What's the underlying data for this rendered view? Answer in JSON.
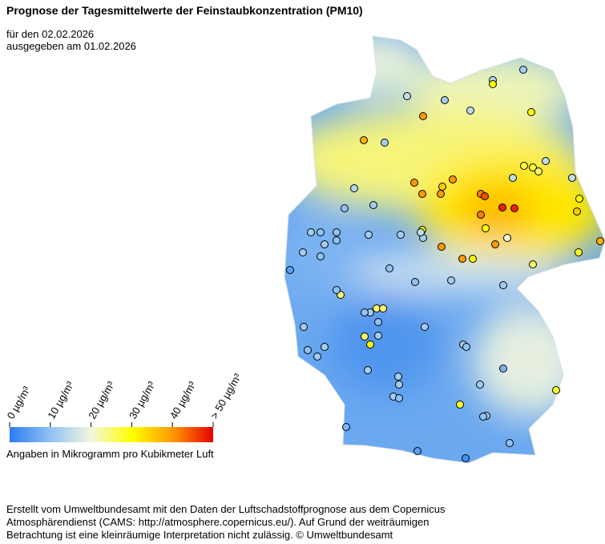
{
  "header": {
    "title": "Prognose der Tagesmittelwerte der Feinstaubkonzentration (PM10)",
    "date_line": "für den 02.02.2026",
    "issued_line": "ausgegeben am 01.02.2026"
  },
  "legend": {
    "ticks": [
      {
        "value": 0,
        "label": "0 µg/m³"
      },
      {
        "value": 10,
        "label": "10 µg/m³"
      },
      {
        "value": 20,
        "label": "20 µg/m³"
      },
      {
        "value": 30,
        "label": "30 µg/m³"
      },
      {
        "value": 40,
        "label": "40 µg/m³"
      },
      {
        "value": 50,
        "label": "> 50 µg/m³"
      }
    ],
    "colorscale": [
      {
        "value": 0,
        "color": "#2c7bf2"
      },
      {
        "value": 10,
        "color": "#8fc2f5"
      },
      {
        "value": 20,
        "color": "#f3f7de"
      },
      {
        "value": 30,
        "color": "#ffff00"
      },
      {
        "value": 40,
        "color": "#ff9a00"
      },
      {
        "value": 50,
        "color": "#e80000"
      }
    ],
    "caption": "Angaben in Mikrogramm pro Kubikmeter Luft"
  },
  "stations": [
    40,
    38,
    12,
    15,
    12,
    15,
    14,
    30,
    30,
    12,
    40,
    40,
    40,
    35,
    40,
    42,
    45,
    48,
    48,
    42,
    30,
    40,
    40,
    40,
    30,
    20,
    28,
    25,
    15,
    28,
    35,
    30,
    38,
    28,
    25,
    30,
    12,
    14,
    12,
    10,
    12,
    10,
    10,
    12,
    10,
    12,
    10,
    5,
    12,
    12,
    15,
    10,
    10,
    12,
    12,
    25,
    10,
    25,
    25,
    12,
    10,
    10,
    25,
    30,
    12,
    12,
    12,
    12,
    10,
    12,
    12,
    10,
    12,
    12,
    12,
    12,
    10,
    8,
    5,
    3,
    8,
    12,
    28,
    12,
    10,
    28,
    10,
    15,
    15
  ],
  "footer": {
    "line1": "Erstellt vom Umweltbundesamt mit den Daten der Luftschadstoffprognose aus dem Copernicus",
    "line2": "Atmosphärendienst (CAMS: http://atmosphere.copernicus.eu/). Auf Grund der weiträumigen",
    "line3": "Betrachtung ist eine kleinräumige Interpretation nicht zulässig. © Umweltbundesamt"
  }
}
